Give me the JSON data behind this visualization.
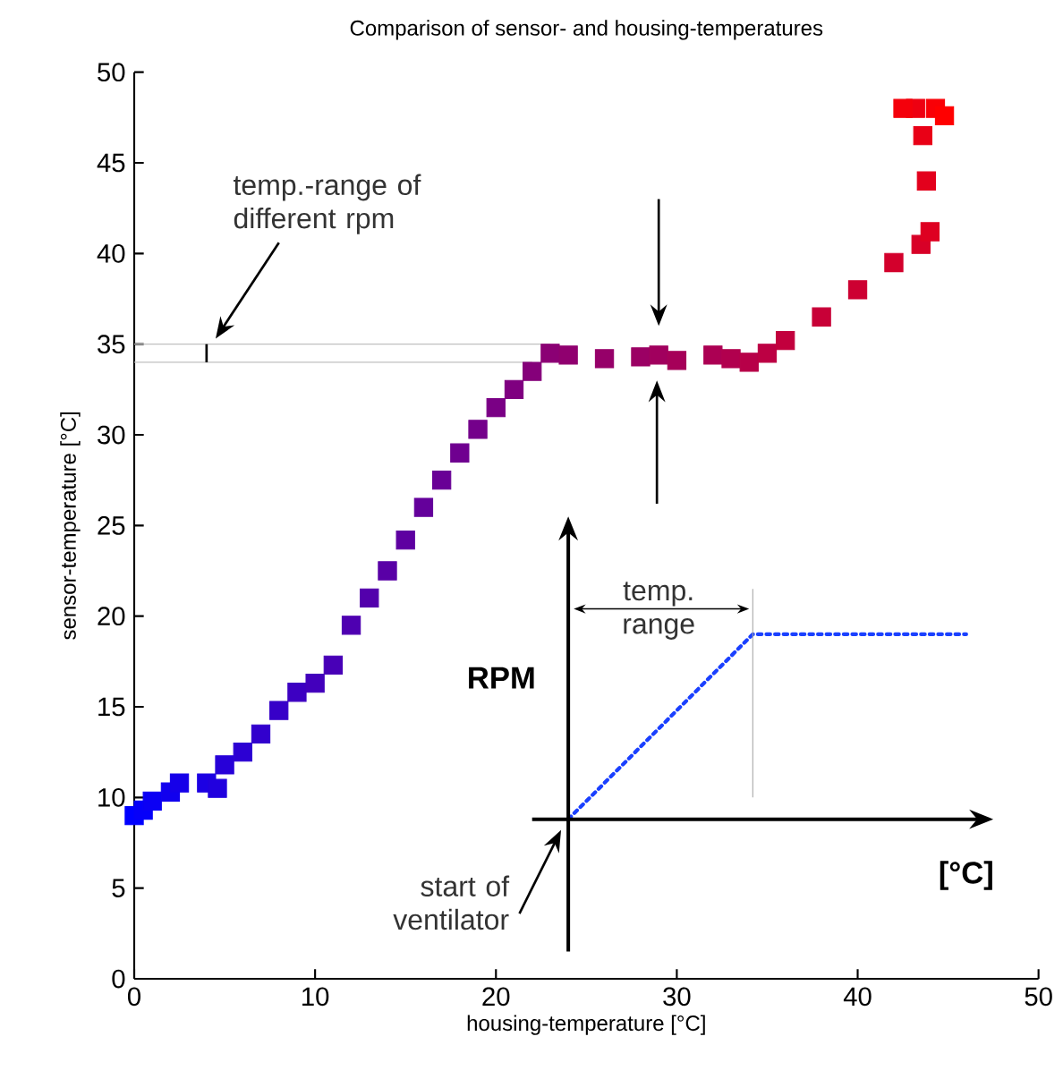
{
  "chart_data": {
    "type": "scatter",
    "title": "Comparison of sensor- and housing-temperatures",
    "xlabel": "housing-temperature [°C]",
    "ylabel": "sensor-temperature [°C]",
    "xlim": [
      0,
      50
    ],
    "ylim": [
      0,
      50
    ],
    "xticks": [
      0,
      10,
      20,
      30,
      40,
      50
    ],
    "yticks": [
      0,
      5,
      10,
      15,
      20,
      25,
      30,
      35,
      40,
      45,
      50
    ],
    "marker": "square",
    "grid": false,
    "series": [
      {
        "x": [
          0,
          0.5,
          1,
          2,
          2.5,
          4,
          4.6,
          5,
          6,
          7,
          8,
          9,
          10,
          11,
          12,
          13,
          14,
          15,
          16,
          17,
          18,
          19,
          20,
          21,
          22,
          23,
          24,
          26,
          28,
          29,
          30,
          32,
          33,
          34,
          35,
          36,
          38,
          40,
          42,
          43.5,
          44,
          43.8,
          43.6,
          43.2,
          42.5,
          44.3,
          44.8
        ],
        "values": [
          9,
          9.3,
          9.8,
          10.3,
          10.8,
          10.8,
          10.5,
          11.8,
          12.5,
          13.5,
          14.8,
          15.8,
          16.3,
          17.3,
          19.5,
          21,
          22.5,
          24.2,
          26,
          27.5,
          29,
          30.3,
          31.5,
          32.5,
          33.5,
          34.5,
          34.4,
          34.2,
          34.3,
          34.4,
          34.1,
          34.4,
          34.2,
          34,
          34.5,
          35.2,
          36.5,
          38,
          39.5,
          40.5,
          41.2,
          44,
          46.5,
          48,
          48,
          48,
          47.6
        ],
        "colors": [
          "#0000ff",
          "#0600f9",
          "#0b00f4",
          "#1100ee",
          "#1600e9",
          "#1c00e3",
          "#2100de",
          "#2700d8",
          "#2c00d3",
          "#3200cd",
          "#3700c8",
          "#3d00c2",
          "#4300bc",
          "#4800b7",
          "#4e00b1",
          "#5300ac",
          "#5900a6",
          "#5e00a1",
          "#64009b",
          "#690096",
          "#6f0090",
          "#74008b",
          "#7a0085",
          "#7f0080",
          "#85007a",
          "#8b0074",
          "#90006f",
          "#960069",
          "#9b0064",
          "#a1005e",
          "#a60059",
          "#ac0053",
          "#b1004e",
          "#b70048",
          "#bc0043",
          "#c2003d",
          "#c80037",
          "#cd0032",
          "#d3002c",
          "#d80027",
          "#de0021",
          "#e3001c",
          "#e90016",
          "#ee0011",
          "#f4000b",
          "#f90006",
          "#ff0000"
        ]
      },
      {
        "type": "line",
        "x": [
          24,
          34.2,
          46
        ],
        "values": [
          8.8,
          19,
          19
        ],
        "color": "#1a40ff",
        "line_style": "dotted",
        "marker": "none"
      }
    ],
    "ref_lines": [
      {
        "axis": "y",
        "value": 35,
        "color": "#c0c0c0"
      },
      {
        "axis": "y",
        "value": 34,
        "color": "#c0c0c0"
      }
    ],
    "annotations": [
      "temp.-range of different rpm",
      "RPM",
      "[°C]",
      "temp. range",
      "start of ventilator"
    ]
  }
}
